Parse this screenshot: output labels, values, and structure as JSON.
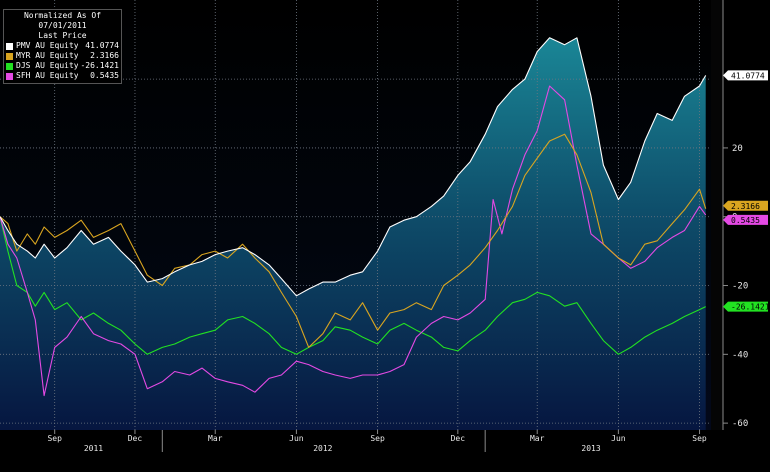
{
  "legend": {
    "title_line1": "Normalized As Of 07/01/2011",
    "title_line2": "Last Price"
  },
  "chart_data": {
    "type": "line",
    "ylim": [
      -62,
      63
    ],
    "xlim": [
      "2011-07-01",
      "2013-09-14"
    ],
    "y_ticks": [
      20,
      0,
      -20,
      -40,
      -60
    ],
    "y_tick_labels": [
      "20",
      "0",
      "-20",
      "-40",
      "-60"
    ],
    "y_gridlines": [
      40,
      20,
      0,
      -20,
      -40,
      -60
    ],
    "x_ticks": [
      {
        "date": "2011-09-01",
        "label": "Sep"
      },
      {
        "date": "2011-12-01",
        "label": "Dec"
      },
      {
        "date": "2012-03-01",
        "label": "Mar"
      },
      {
        "date": "2012-06-01",
        "label": "Jun"
      },
      {
        "date": "2012-09-01",
        "label": "Sep"
      },
      {
        "date": "2012-12-01",
        "label": "Dec"
      },
      {
        "date": "2013-03-01",
        "label": "Mar"
      },
      {
        "date": "2013-06-01",
        "label": "Jun"
      },
      {
        "date": "2013-09-01",
        "label": "Sep"
      }
    ],
    "year_labels": [
      {
        "date": "2011-10-15",
        "label": "2011"
      },
      {
        "date": "2012-07-01",
        "label": "2012"
      },
      {
        "date": "2013-05-01",
        "label": "2013"
      }
    ],
    "year_separators": [
      "2012-01-01",
      "2013-01-01"
    ],
    "grid": true,
    "legend_position": "top-left",
    "series": [
      {
        "name": "PMV AU Equity",
        "last_price": "41.0774",
        "color": "#ffffff",
        "area_fill": true,
        "points": [
          [
            "2011-07-01",
            0
          ],
          [
            "2011-07-10",
            -4
          ],
          [
            "2011-07-20",
            -8
          ],
          [
            "2011-08-01",
            -10
          ],
          [
            "2011-08-10",
            -12
          ],
          [
            "2011-08-20",
            -8
          ],
          [
            "2011-09-01",
            -12
          ],
          [
            "2011-09-15",
            -9
          ],
          [
            "2011-10-01",
            -4
          ],
          [
            "2011-10-15",
            -8
          ],
          [
            "2011-11-01",
            -6
          ],
          [
            "2011-11-15",
            -10
          ],
          [
            "2011-12-01",
            -14
          ],
          [
            "2011-12-15",
            -19
          ],
          [
            "2012-01-01",
            -18
          ],
          [
            "2012-01-15",
            -16
          ],
          [
            "2012-02-01",
            -14
          ],
          [
            "2012-02-15",
            -13
          ],
          [
            "2012-03-01",
            -11
          ],
          [
            "2012-03-15",
            -10
          ],
          [
            "2012-04-01",
            -9
          ],
          [
            "2012-04-15",
            -11
          ],
          [
            "2012-05-01",
            -14
          ],
          [
            "2012-05-15",
            -18
          ],
          [
            "2012-06-01",
            -23
          ],
          [
            "2012-06-15",
            -21
          ],
          [
            "2012-07-01",
            -19
          ],
          [
            "2012-07-15",
            -19
          ],
          [
            "2012-08-01",
            -17
          ],
          [
            "2012-08-15",
            -16
          ],
          [
            "2012-09-01",
            -10
          ],
          [
            "2012-09-15",
            -3
          ],
          [
            "2012-10-01",
            -1
          ],
          [
            "2012-10-15",
            0
          ],
          [
            "2012-11-01",
            3
          ],
          [
            "2012-11-15",
            6
          ],
          [
            "2012-12-01",
            12
          ],
          [
            "2012-12-15",
            16
          ],
          [
            "2013-01-01",
            24
          ],
          [
            "2013-01-15",
            32
          ],
          [
            "2013-02-01",
            37
          ],
          [
            "2013-02-15",
            40
          ],
          [
            "2013-03-01",
            48
          ],
          [
            "2013-03-15",
            52
          ],
          [
            "2013-04-01",
            50
          ],
          [
            "2013-04-15",
            52
          ],
          [
            "2013-05-01",
            35
          ],
          [
            "2013-05-15",
            15
          ],
          [
            "2013-06-01",
            5
          ],
          [
            "2013-06-15",
            10
          ],
          [
            "2013-07-01",
            22
          ],
          [
            "2013-07-15",
            30
          ],
          [
            "2013-08-01",
            28
          ],
          [
            "2013-08-15",
            35
          ],
          [
            "2013-09-01",
            38
          ],
          [
            "2013-09-08",
            41.08
          ]
        ]
      },
      {
        "name": "MYR AU Equity",
        "last_price": "2.3166",
        "color": "#d9a520",
        "area_fill": false,
        "points": [
          [
            "2011-07-01",
            0
          ],
          [
            "2011-07-10",
            -2
          ],
          [
            "2011-07-20",
            -10
          ],
          [
            "2011-08-01",
            -5
          ],
          [
            "2011-08-10",
            -8
          ],
          [
            "2011-08-20",
            -3
          ],
          [
            "2011-09-01",
            -6
          ],
          [
            "2011-09-15",
            -4
          ],
          [
            "2011-10-01",
            -1
          ],
          [
            "2011-10-15",
            -6
          ],
          [
            "2011-11-01",
            -4
          ],
          [
            "2011-11-15",
            -2
          ],
          [
            "2011-12-01",
            -10
          ],
          [
            "2011-12-15",
            -17
          ],
          [
            "2012-01-01",
            -20
          ],
          [
            "2012-01-15",
            -15
          ],
          [
            "2012-02-01",
            -14
          ],
          [
            "2012-02-15",
            -11
          ],
          [
            "2012-03-01",
            -10
          ],
          [
            "2012-03-15",
            -12
          ],
          [
            "2012-04-01",
            -8
          ],
          [
            "2012-04-15",
            -12
          ],
          [
            "2012-05-01",
            -16
          ],
          [
            "2012-05-15",
            -22
          ],
          [
            "2012-06-01",
            -29
          ],
          [
            "2012-06-15",
            -38
          ],
          [
            "2012-07-01",
            -34
          ],
          [
            "2012-07-15",
            -28
          ],
          [
            "2012-08-01",
            -30
          ],
          [
            "2012-08-15",
            -25
          ],
          [
            "2012-09-01",
            -33
          ],
          [
            "2012-09-15",
            -28
          ],
          [
            "2012-10-01",
            -27
          ],
          [
            "2012-10-15",
            -25
          ],
          [
            "2012-11-01",
            -27
          ],
          [
            "2012-11-15",
            -20
          ],
          [
            "2012-12-01",
            -17
          ],
          [
            "2012-12-15",
            -14
          ],
          [
            "2013-01-01",
            -9
          ],
          [
            "2013-01-15",
            -4
          ],
          [
            "2013-02-01",
            3
          ],
          [
            "2013-02-15",
            12
          ],
          [
            "2013-03-01",
            17
          ],
          [
            "2013-03-15",
            22
          ],
          [
            "2013-04-01",
            24
          ],
          [
            "2013-04-15",
            18
          ],
          [
            "2013-05-01",
            7
          ],
          [
            "2013-05-15",
            -8
          ],
          [
            "2013-06-01",
            -12
          ],
          [
            "2013-06-15",
            -14
          ],
          [
            "2013-07-01",
            -8
          ],
          [
            "2013-07-15",
            -7
          ],
          [
            "2013-08-01",
            -2
          ],
          [
            "2013-08-15",
            2
          ],
          [
            "2013-09-01",
            8
          ],
          [
            "2013-09-08",
            2.32
          ]
        ]
      },
      {
        "name": "DJS AU Equity",
        "last_price": "-26.1421",
        "color": "#22e222",
        "area_fill": false,
        "points": [
          [
            "2011-07-01",
            0
          ],
          [
            "2011-07-10",
            -10
          ],
          [
            "2011-07-20",
            -20
          ],
          [
            "2011-08-01",
            -22
          ],
          [
            "2011-08-10",
            -26
          ],
          [
            "2011-08-20",
            -22
          ],
          [
            "2011-09-01",
            -27
          ],
          [
            "2011-09-15",
            -25
          ],
          [
            "2011-10-01",
            -30
          ],
          [
            "2011-10-15",
            -28
          ],
          [
            "2011-11-01",
            -31
          ],
          [
            "2011-11-15",
            -33
          ],
          [
            "2011-12-01",
            -37
          ],
          [
            "2011-12-15",
            -40
          ],
          [
            "2012-01-01",
            -38
          ],
          [
            "2012-01-15",
            -37
          ],
          [
            "2012-02-01",
            -35
          ],
          [
            "2012-02-15",
            -34
          ],
          [
            "2012-03-01",
            -33
          ],
          [
            "2012-03-15",
            -30
          ],
          [
            "2012-04-01",
            -29
          ],
          [
            "2012-04-15",
            -31
          ],
          [
            "2012-05-01",
            -34
          ],
          [
            "2012-05-15",
            -38
          ],
          [
            "2012-06-01",
            -40
          ],
          [
            "2012-06-15",
            -38
          ],
          [
            "2012-07-01",
            -36
          ],
          [
            "2012-07-15",
            -32
          ],
          [
            "2012-08-01",
            -33
          ],
          [
            "2012-08-15",
            -35
          ],
          [
            "2012-09-01",
            -37
          ],
          [
            "2012-09-15",
            -33
          ],
          [
            "2012-10-01",
            -31
          ],
          [
            "2012-10-15",
            -33
          ],
          [
            "2012-11-01",
            -35
          ],
          [
            "2012-11-15",
            -38
          ],
          [
            "2012-12-01",
            -39
          ],
          [
            "2012-12-15",
            -36
          ],
          [
            "2013-01-01",
            -33
          ],
          [
            "2013-01-15",
            -29
          ],
          [
            "2013-02-01",
            -25
          ],
          [
            "2013-02-15",
            -24
          ],
          [
            "2013-03-01",
            -22
          ],
          [
            "2013-03-15",
            -23
          ],
          [
            "2013-04-01",
            -26
          ],
          [
            "2013-04-15",
            -25
          ],
          [
            "2013-05-01",
            -31
          ],
          [
            "2013-05-15",
            -36
          ],
          [
            "2013-06-01",
            -40
          ],
          [
            "2013-06-15",
            -38
          ],
          [
            "2013-07-01",
            -35
          ],
          [
            "2013-07-15",
            -33
          ],
          [
            "2013-08-01",
            -31
          ],
          [
            "2013-08-15",
            -29
          ],
          [
            "2013-09-01",
            -27
          ],
          [
            "2013-09-08",
            -26.14
          ]
        ]
      },
      {
        "name": "SFH AU Equity",
        "last_price": "0.5435",
        "color": "#e44ae4",
        "area_fill": false,
        "points": [
          [
            "2011-07-01",
            0
          ],
          [
            "2011-07-10",
            -8
          ],
          [
            "2011-07-20",
            -12
          ],
          [
            "2011-08-01",
            -22
          ],
          [
            "2011-08-10",
            -30
          ],
          [
            "2011-08-20",
            -52
          ],
          [
            "2011-09-01",
            -38
          ],
          [
            "2011-09-15",
            -35
          ],
          [
            "2011-10-01",
            -29
          ],
          [
            "2011-10-15",
            -34
          ],
          [
            "2011-11-01",
            -36
          ],
          [
            "2011-11-15",
            -37
          ],
          [
            "2011-12-01",
            -40
          ],
          [
            "2011-12-15",
            -50
          ],
          [
            "2012-01-01",
            -48
          ],
          [
            "2012-01-15",
            -45
          ],
          [
            "2012-02-01",
            -46
          ],
          [
            "2012-02-15",
            -44
          ],
          [
            "2012-03-01",
            -47
          ],
          [
            "2012-03-15",
            -48
          ],
          [
            "2012-04-01",
            -49
          ],
          [
            "2012-04-15",
            -51
          ],
          [
            "2012-05-01",
            -47
          ],
          [
            "2012-05-15",
            -46
          ],
          [
            "2012-06-01",
            -42
          ],
          [
            "2012-06-15",
            -43
          ],
          [
            "2012-07-01",
            -45
          ],
          [
            "2012-07-15",
            -46
          ],
          [
            "2012-08-01",
            -47
          ],
          [
            "2012-08-15",
            -46
          ],
          [
            "2012-09-01",
            -46
          ],
          [
            "2012-09-15",
            -45
          ],
          [
            "2012-10-01",
            -43
          ],
          [
            "2012-10-15",
            -35
          ],
          [
            "2012-11-01",
            -31
          ],
          [
            "2012-11-15",
            -29
          ],
          [
            "2012-12-01",
            -30
          ],
          [
            "2012-12-15",
            -28
          ],
          [
            "2013-01-01",
            -24
          ],
          [
            "2013-01-10",
            5
          ],
          [
            "2013-01-20",
            -5
          ],
          [
            "2013-02-01",
            8
          ],
          [
            "2013-02-15",
            18
          ],
          [
            "2013-03-01",
            25
          ],
          [
            "2013-03-15",
            38
          ],
          [
            "2013-04-01",
            34
          ],
          [
            "2013-04-15",
            15
          ],
          [
            "2013-05-01",
            -5
          ],
          [
            "2013-05-15",
            -8
          ],
          [
            "2013-06-01",
            -12
          ],
          [
            "2013-06-15",
            -15
          ],
          [
            "2013-07-01",
            -13
          ],
          [
            "2013-07-15",
            -9
          ],
          [
            "2013-08-01",
            -6
          ],
          [
            "2013-08-15",
            -4
          ],
          [
            "2013-09-01",
            3
          ],
          [
            "2013-09-08",
            0.54
          ]
        ]
      }
    ]
  }
}
